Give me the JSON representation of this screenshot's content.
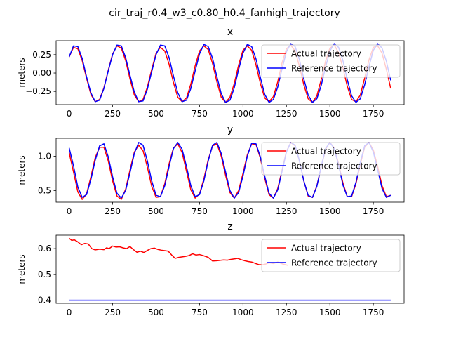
{
  "suptitle": "cir_traj_r0.4_w3_c0.80_h0.4_fanhigh_trajectory",
  "colors": {
    "actual": "#ff0000",
    "reference": "#0000ff"
  },
  "chart_data": [
    {
      "type": "line",
      "title": "x",
      "ylabel": "meters",
      "xlim": [
        -75,
        1927
      ],
      "ylim": [
        -0.43,
        0.44
      ],
      "xticks": [
        0,
        250,
        500,
        750,
        1000,
        1250,
        1500,
        1750
      ],
      "yticks": [
        -0.25,
        0.0,
        0.25
      ],
      "ytick_labels": [
        "−0.25",
        "0.00",
        "0.25"
      ],
      "legend_position": "upper right",
      "series": [
        {
          "name": "Actual trajectory",
          "color": "#ff0000",
          "x": [
            0,
            25,
            50,
            75,
            100,
            125,
            150,
            175,
            200,
            225,
            250,
            275,
            300,
            325,
            350,
            375,
            400,
            425,
            450,
            475,
            500,
            525,
            550,
            575,
            600,
            625,
            650,
            675,
            700,
            725,
            750,
            775,
            800,
            825,
            850,
            875,
            900,
            925,
            950,
            975,
            1000,
            1025,
            1050,
            1075,
            1100,
            1125,
            1150,
            1175,
            1200,
            1225,
            1250,
            1275,
            1300,
            1325,
            1350,
            1375,
            1400,
            1425,
            1450,
            1475,
            1500,
            1525,
            1550,
            1575,
            1600,
            1625,
            1650,
            1675,
            1700,
            1725,
            1750,
            1775,
            1800,
            1825,
            1850
          ],
          "y": [
            0.22,
            0.35,
            0.33,
            0.17,
            -0.07,
            -0.29,
            -0.39,
            -0.36,
            -0.2,
            0.04,
            0.26,
            0.37,
            0.34,
            0.17,
            -0.08,
            -0.3,
            -0.39,
            -0.36,
            -0.19,
            0.05,
            0.27,
            0.35,
            0.3,
            0.12,
            -0.13,
            -0.33,
            -0.39,
            -0.34,
            -0.15,
            0.1,
            0.3,
            0.37,
            0.32,
            0.13,
            -0.12,
            -0.33,
            -0.4,
            -0.33,
            -0.14,
            0.11,
            0.31,
            0.37,
            0.31,
            0.11,
            -0.14,
            -0.34,
            -0.39,
            -0.32,
            -0.12,
            0.14,
            0.33,
            0.38,
            0.3,
            0.09,
            -0.16,
            -0.35,
            -0.4,
            -0.31,
            -0.09,
            0.16,
            0.34,
            0.38,
            0.28,
            0.07,
            -0.18,
            -0.36,
            -0.39,
            -0.3,
            -0.07,
            0.18,
            0.35,
            0.37,
            0.27,
            0.05,
            -0.21
          ]
        },
        {
          "name": "Reference trajectory",
          "color": "#0000ff",
          "x": [
            0,
            25,
            50,
            75,
            100,
            125,
            150,
            175,
            200,
            225,
            250,
            275,
            300,
            325,
            350,
            375,
            400,
            425,
            450,
            475,
            500,
            525,
            550,
            575,
            600,
            625,
            650,
            675,
            700,
            725,
            750,
            775,
            800,
            825,
            850,
            875,
            900,
            925,
            950,
            975,
            1000,
            1025,
            1050,
            1075,
            1100,
            1125,
            1150,
            1175,
            1200,
            1225,
            1250,
            1275,
            1300,
            1325,
            1350,
            1375,
            1400,
            1425,
            1450,
            1475,
            1500,
            1525,
            1550,
            1575,
            1600,
            1625,
            1650,
            1675,
            1700,
            1725,
            1750,
            1775,
            1800,
            1825,
            1850
          ],
          "y": [
            0.22,
            0.37,
            0.36,
            0.2,
            -0.05,
            -0.27,
            -0.39,
            -0.37,
            -0.21,
            0.03,
            0.25,
            0.38,
            0.37,
            0.21,
            -0.03,
            -0.26,
            -0.39,
            -0.38,
            -0.22,
            0.02,
            0.25,
            0.38,
            0.37,
            0.21,
            -0.04,
            -0.27,
            -0.39,
            -0.37,
            -0.21,
            0.03,
            0.26,
            0.39,
            0.36,
            0.2,
            -0.05,
            -0.28,
            -0.4,
            -0.37,
            -0.2,
            0.05,
            0.27,
            0.39,
            0.36,
            0.19,
            -0.06,
            -0.29,
            -0.4,
            -0.36,
            -0.19,
            0.06,
            0.29,
            0.4,
            0.36,
            0.18,
            -0.08,
            -0.3,
            -0.4,
            -0.35,
            -0.17,
            0.08,
            0.3,
            0.4,
            0.35,
            0.17,
            -0.09,
            -0.31,
            -0.4,
            -0.35,
            -0.16,
            0.09,
            0.31,
            0.4,
            0.34,
            0.16,
            -0.1
          ]
        }
      ]
    },
    {
      "type": "line",
      "title": "y",
      "ylabel": "meters",
      "xlim": [
        -75,
        1927
      ],
      "ylim": [
        0.33,
        1.26
      ],
      "xticks": [
        0,
        250,
        500,
        750,
        1000,
        1250,
        1500,
        1750
      ],
      "yticks": [
        0.5,
        1.0
      ],
      "ytick_labels": [
        "0.5",
        "1.0"
      ],
      "legend_position": "upper right",
      "series": [
        {
          "name": "Actual trajectory",
          "color": "#ff0000",
          "x": [
            0,
            25,
            50,
            75,
            100,
            125,
            150,
            175,
            200,
            225,
            250,
            275,
            300,
            325,
            350,
            375,
            400,
            425,
            450,
            475,
            500,
            525,
            550,
            575,
            600,
            625,
            650,
            675,
            700,
            725,
            750,
            775,
            800,
            825,
            850,
            875,
            900,
            925,
            950,
            975,
            1000,
            1025,
            1050,
            1075,
            1100,
            1125,
            1150,
            1175,
            1200,
            1225,
            1250,
            1275,
            1300,
            1325,
            1350,
            1375,
            1400,
            1425,
            1450,
            1475,
            1500,
            1525,
            1550,
            1575,
            1600,
            1625,
            1650,
            1675,
            1700,
            1725,
            1750,
            1775,
            1800,
            1825,
            1850
          ],
          "y": [
            1.05,
            0.77,
            0.48,
            0.37,
            0.45,
            0.7,
            0.98,
            1.13,
            1.13,
            0.93,
            0.64,
            0.42,
            0.37,
            0.52,
            0.8,
            1.06,
            1.16,
            1.08,
            0.84,
            0.56,
            0.4,
            0.41,
            0.6,
            0.89,
            1.12,
            1.18,
            1.05,
            0.78,
            0.51,
            0.39,
            0.45,
            0.67,
            0.95,
            1.15,
            1.18,
            1.0,
            0.72,
            0.47,
            0.39,
            0.5,
            0.75,
            1.02,
            1.18,
            1.17,
            0.97,
            0.68,
            0.44,
            0.39,
            0.53,
            0.8,
            1.07,
            1.2,
            1.15,
            0.93,
            0.64,
            0.42,
            0.4,
            0.57,
            0.84,
            1.1,
            1.2,
            1.12,
            0.89,
            0.61,
            0.41,
            0.41,
            0.6,
            0.88,
            1.13,
            1.2,
            1.09,
            0.85,
            0.57,
            0.41,
            0.43
          ]
        },
        {
          "name": "Reference trajectory",
          "color": "#0000ff",
          "x": [
            0,
            25,
            50,
            75,
            100,
            125,
            150,
            175,
            200,
            225,
            250,
            275,
            300,
            325,
            350,
            375,
            400,
            425,
            450,
            475,
            500,
            525,
            550,
            575,
            600,
            625,
            650,
            675,
            700,
            725,
            750,
            775,
            800,
            825,
            850,
            875,
            900,
            925,
            950,
            975,
            1000,
            1025,
            1050,
            1075,
            1100,
            1125,
            1150,
            1175,
            1200,
            1225,
            1250,
            1275,
            1300,
            1325,
            1350,
            1375,
            1400,
            1425,
            1450,
            1475,
            1500,
            1525,
            1550,
            1575,
            1600,
            1625,
            1650,
            1675,
            1700,
            1725,
            1750,
            1775,
            1800,
            1825,
            1850
          ],
          "y": [
            1.12,
            0.86,
            0.55,
            0.4,
            0.44,
            0.66,
            0.94,
            1.15,
            1.18,
            0.99,
            0.7,
            0.46,
            0.39,
            0.5,
            0.76,
            1.04,
            1.2,
            1.16,
            0.93,
            0.64,
            0.43,
            0.41,
            0.57,
            0.85,
            1.11,
            1.2,
            1.1,
            0.85,
            0.57,
            0.41,
            0.44,
            0.64,
            0.93,
            1.16,
            1.2,
            1.04,
            0.77,
            0.5,
            0.39,
            0.47,
            0.71,
            1.0,
            1.19,
            1.18,
            0.99,
            0.71,
            0.46,
            0.39,
            0.51,
            0.78,
            1.06,
            1.2,
            1.16,
            0.93,
            0.64,
            0.43,
            0.4,
            0.56,
            0.85,
            1.11,
            1.2,
            1.11,
            0.87,
            0.58,
            0.41,
            0.42,
            0.62,
            0.91,
            1.15,
            1.2,
            1.06,
            0.8,
            0.53,
            0.4,
            0.43
          ]
        }
      ]
    },
    {
      "type": "line",
      "title": "z",
      "ylabel": "meters",
      "xlim": [
        -75,
        1927
      ],
      "ylim": [
        0.388,
        0.652
      ],
      "xticks": [
        0,
        250,
        500,
        750,
        1000,
        1250,
        1500,
        1750
      ],
      "yticks": [
        0.4,
        0.5,
        0.6
      ],
      "ytick_labels": [
        "0.4",
        "0.5",
        "0.6"
      ],
      "legend_position": "upper right",
      "series": [
        {
          "name": "Actual trajectory",
          "color": "#ff0000",
          "x": [
            0,
            15,
            30,
            50,
            70,
            90,
            110,
            130,
            150,
            175,
            200,
            215,
            230,
            250,
            270,
            290,
            310,
            330,
            350,
            370,
            390,
            410,
            430,
            450,
            470,
            490,
            510,
            530,
            550,
            570,
            590,
            610,
            630,
            650,
            670,
            690,
            710,
            730,
            750,
            775,
            800,
            825,
            850,
            875,
            890,
            910,
            930,
            950,
            970,
            990,
            1010,
            1030,
            1050,
            1070,
            1090,
            1110,
            1130,
            1150,
            1175,
            1200,
            1230,
            1260
          ],
          "y": [
            0.64,
            0.632,
            0.634,
            0.626,
            0.615,
            0.62,
            0.618,
            0.6,
            0.595,
            0.598,
            0.596,
            0.603,
            0.6,
            0.61,
            0.606,
            0.607,
            0.603,
            0.6,
            0.608,
            0.596,
            0.586,
            0.59,
            0.585,
            0.593,
            0.6,
            0.602,
            0.597,
            0.594,
            0.592,
            0.59,
            0.575,
            0.562,
            0.566,
            0.568,
            0.57,
            0.573,
            0.58,
            0.575,
            0.577,
            0.572,
            0.566,
            0.552,
            0.553,
            0.555,
            0.556,
            0.555,
            0.558,
            0.56,
            0.562,
            0.557,
            0.553,
            0.55,
            0.548,
            0.543,
            0.538,
            0.537,
            0.54,
            0.545,
            0.542,
            0.548,
            0.54,
            0.535
          ]
        },
        {
          "name": "Reference trajectory",
          "color": "#0000ff",
          "x": [
            0,
            1850
          ],
          "y": [
            0.4,
            0.4
          ]
        }
      ]
    }
  ]
}
